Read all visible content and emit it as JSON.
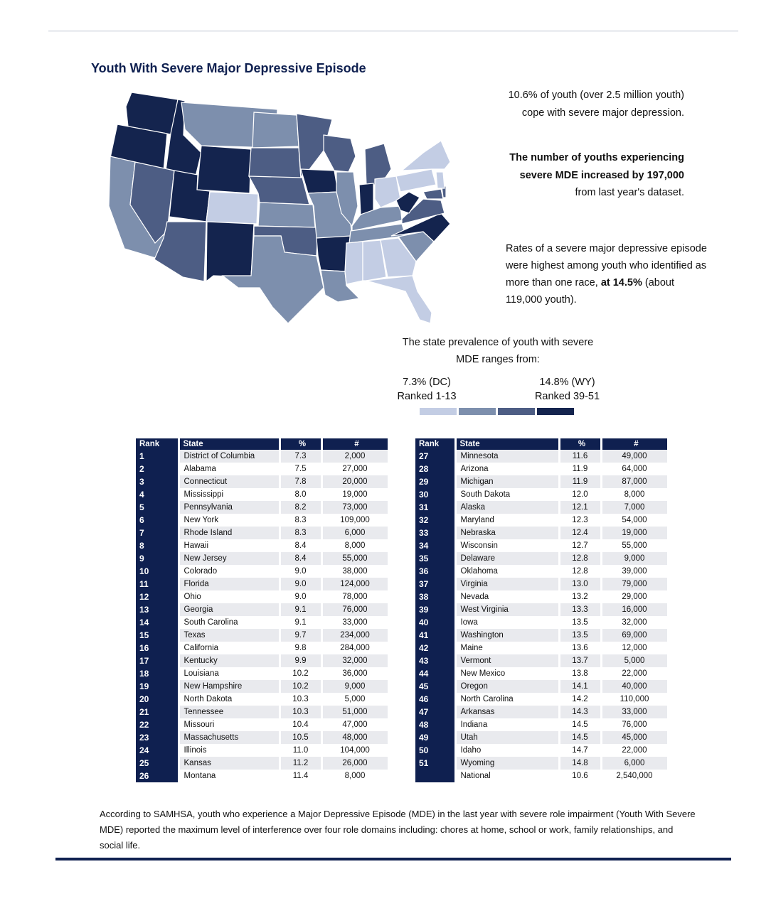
{
  "title": "Youth With Severe Major Depressive Episode",
  "intro": "10.6% of youth (over 2.5 million youth) cope with severe major depression.",
  "increase": {
    "bold": "The number of youths experiencing severe MDE increased by 197,000",
    "rest": " from last year's dataset."
  },
  "race": {
    "text": "Rates of a severe major depressive episode were highest among youth who identified as more than one race, ",
    "bold_value": "at 14.5%",
    "rest": " (about 119,000 youth)."
  },
  "range_text": "The state prevalence of youth with severe MDE ranges from:",
  "legend": {
    "low_value": "7.3% (DC)",
    "low_rank": "Ranked 1-13",
    "high_value": "14.8% (WY)",
    "high_rank": "Ranked 39-51",
    "colors": [
      "#c3cde4",
      "#7d8fad",
      "#4d5d84",
      "#14244e"
    ]
  },
  "table_headers": {
    "rank": "Rank",
    "state": "State",
    "pct": "%",
    "num": "#"
  },
  "rows": [
    {
      "rank": "1",
      "state": "District of Columbia",
      "pct": "7.3",
      "num": "2,000"
    },
    {
      "rank": "2",
      "state": "Alabama",
      "pct": "7.5",
      "num": "27,000"
    },
    {
      "rank": "3",
      "state": "Connecticut",
      "pct": "7.8",
      "num": "20,000"
    },
    {
      "rank": "4",
      "state": "Mississippi",
      "pct": "8.0",
      "num": "19,000"
    },
    {
      "rank": "5",
      "state": "Pennsylvania",
      "pct": "8.2",
      "num": "73,000"
    },
    {
      "rank": "6",
      "state": "New York",
      "pct": "8.3",
      "num": "109,000"
    },
    {
      "rank": "7",
      "state": "Rhode Island",
      "pct": "8.3",
      "num": "6,000"
    },
    {
      "rank": "8",
      "state": "Hawaii",
      "pct": "8.4",
      "num": "8,000"
    },
    {
      "rank": "9",
      "state": "New Jersey",
      "pct": "8.4",
      "num": "55,000"
    },
    {
      "rank": "10",
      "state": "Colorado",
      "pct": "9.0",
      "num": "38,000"
    },
    {
      "rank": "11",
      "state": "Florida",
      "pct": "9.0",
      "num": "124,000"
    },
    {
      "rank": "12",
      "state": "Ohio",
      "pct": "9.0",
      "num": "78,000"
    },
    {
      "rank": "13",
      "state": "Georgia",
      "pct": "9.1",
      "num": "76,000"
    },
    {
      "rank": "14",
      "state": "South Carolina",
      "pct": "9.1",
      "num": "33,000"
    },
    {
      "rank": "15",
      "state": "Texas",
      "pct": "9.7",
      "num": "234,000"
    },
    {
      "rank": "16",
      "state": "California",
      "pct": "9.8",
      "num": "284,000"
    },
    {
      "rank": "17",
      "state": "Kentucky",
      "pct": "9.9",
      "num": "32,000"
    },
    {
      "rank": "18",
      "state": "Louisiana",
      "pct": "10.2",
      "num": "36,000"
    },
    {
      "rank": "19",
      "state": "New Hampshire",
      "pct": "10.2",
      "num": "9,000"
    },
    {
      "rank": "20",
      "state": "North Dakota",
      "pct": "10.3",
      "num": "5,000"
    },
    {
      "rank": "21",
      "state": "Tennessee",
      "pct": "10.3",
      "num": "51,000"
    },
    {
      "rank": "22",
      "state": "Missouri",
      "pct": "10.4",
      "num": "47,000"
    },
    {
      "rank": "23",
      "state": "Massachusetts",
      "pct": "10.5",
      "num": "48,000"
    },
    {
      "rank": "24",
      "state": "Illinois",
      "pct": "11.0",
      "num": "104,000"
    },
    {
      "rank": "25",
      "state": "Kansas",
      "pct": "11.2",
      "num": "26,000"
    },
    {
      "rank": "26",
      "state": "Montana",
      "pct": "11.4",
      "num": "8,000"
    },
    {
      "rank": "27",
      "state": "Minnesota",
      "pct": "11.6",
      "num": "49,000"
    },
    {
      "rank": "28",
      "state": "Arizona",
      "pct": "11.9",
      "num": "64,000"
    },
    {
      "rank": "29",
      "state": "Michigan",
      "pct": "11.9",
      "num": "87,000"
    },
    {
      "rank": "30",
      "state": "South Dakota",
      "pct": "12.0",
      "num": "8,000"
    },
    {
      "rank": "31",
      "state": "Alaska",
      "pct": "12.1",
      "num": "7,000"
    },
    {
      "rank": "32",
      "state": "Maryland",
      "pct": "12.3",
      "num": "54,000"
    },
    {
      "rank": "33",
      "state": "Nebraska",
      "pct": "12.4",
      "num": "19,000"
    },
    {
      "rank": "34",
      "state": "Wisconsin",
      "pct": "12.7",
      "num": "55,000"
    },
    {
      "rank": "35",
      "state": "Delaware",
      "pct": "12.8",
      "num": "9,000"
    },
    {
      "rank": "36",
      "state": "Oklahoma",
      "pct": "12.8",
      "num": "39,000"
    },
    {
      "rank": "37",
      "state": "Virginia",
      "pct": "13.0",
      "num": "79,000"
    },
    {
      "rank": "38",
      "state": "Nevada",
      "pct": "13.2",
      "num": "29,000"
    },
    {
      "rank": "39",
      "state": "West Virginia",
      "pct": "13.3",
      "num": "16,000"
    },
    {
      "rank": "40",
      "state": "Iowa",
      "pct": "13.5",
      "num": "32,000"
    },
    {
      "rank": "41",
      "state": "Washington",
      "pct": "13.5",
      "num": "69,000"
    },
    {
      "rank": "42",
      "state": "Maine",
      "pct": "13.6",
      "num": "12,000"
    },
    {
      "rank": "43",
      "state": "Vermont",
      "pct": "13.7",
      "num": "5,000"
    },
    {
      "rank": "44",
      "state": "New Mexico",
      "pct": "13.8",
      "num": "22,000"
    },
    {
      "rank": "45",
      "state": "Oregon",
      "pct": "14.1",
      "num": "40,000"
    },
    {
      "rank": "46",
      "state": "North Carolina",
      "pct": "14.2",
      "num": "110,000"
    },
    {
      "rank": "47",
      "state": "Arkansas",
      "pct": "14.3",
      "num": "33,000"
    },
    {
      "rank": "48",
      "state": "Indiana",
      "pct": "14.5",
      "num": "76,000"
    },
    {
      "rank": "49",
      "state": "Utah",
      "pct": "14.5",
      "num": "45,000"
    },
    {
      "rank": "50",
      "state": "Idaho",
      "pct": "14.7",
      "num": "22,000"
    },
    {
      "rank": "51",
      "state": "Wyoming",
      "pct": "14.8",
      "num": "6,000"
    },
    {
      "rank": "",
      "state": "National",
      "pct": "10.6",
      "num": "2,540,000"
    }
  ],
  "footnote": "According to SAMHSA, youth who experience a Major Depressive Episode (MDE) in the last year with severe role impairment (Youth With Severe MDE) reported the maximum level of interference over four role domains including: chores at home, school or work, family relationships, and social life."
}
